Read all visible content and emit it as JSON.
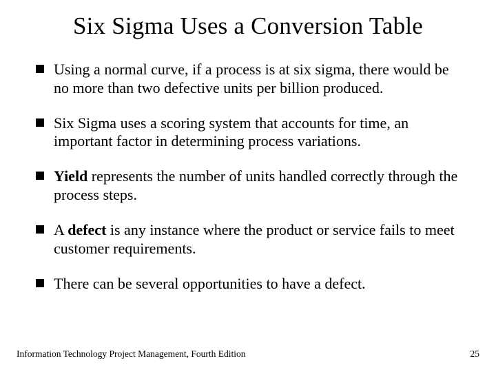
{
  "title": "Six Sigma Uses a Conversion Table",
  "bullets": {
    "b0": "Using a normal curve, if a process is at six sigma, there would be no more than two defective units per billion produced.",
    "b1": "Six Sigma uses a scoring system that accounts for time, an important factor in determining process variations.",
    "b2_bold": "Yield",
    "b2_rest": " represents the number of units handled correctly through the process steps.",
    "b3_pre": "A ",
    "b3_bold": "defect",
    "b3_rest": " is any instance where the product or service fails to meet customer requirements.",
    "b4": "There can be several opportunities to have a defect."
  },
  "footer": {
    "left": "Information Technology Project Management, Fourth Edition",
    "page": "25"
  },
  "style": {
    "background_color": "#ffffff",
    "text_color": "#000000",
    "title_fontsize": 35,
    "body_fontsize": 22,
    "footer_fontsize": 13.5,
    "bullet_marker": "square",
    "bullet_color": "#000000",
    "font_family": "Garamond"
  }
}
